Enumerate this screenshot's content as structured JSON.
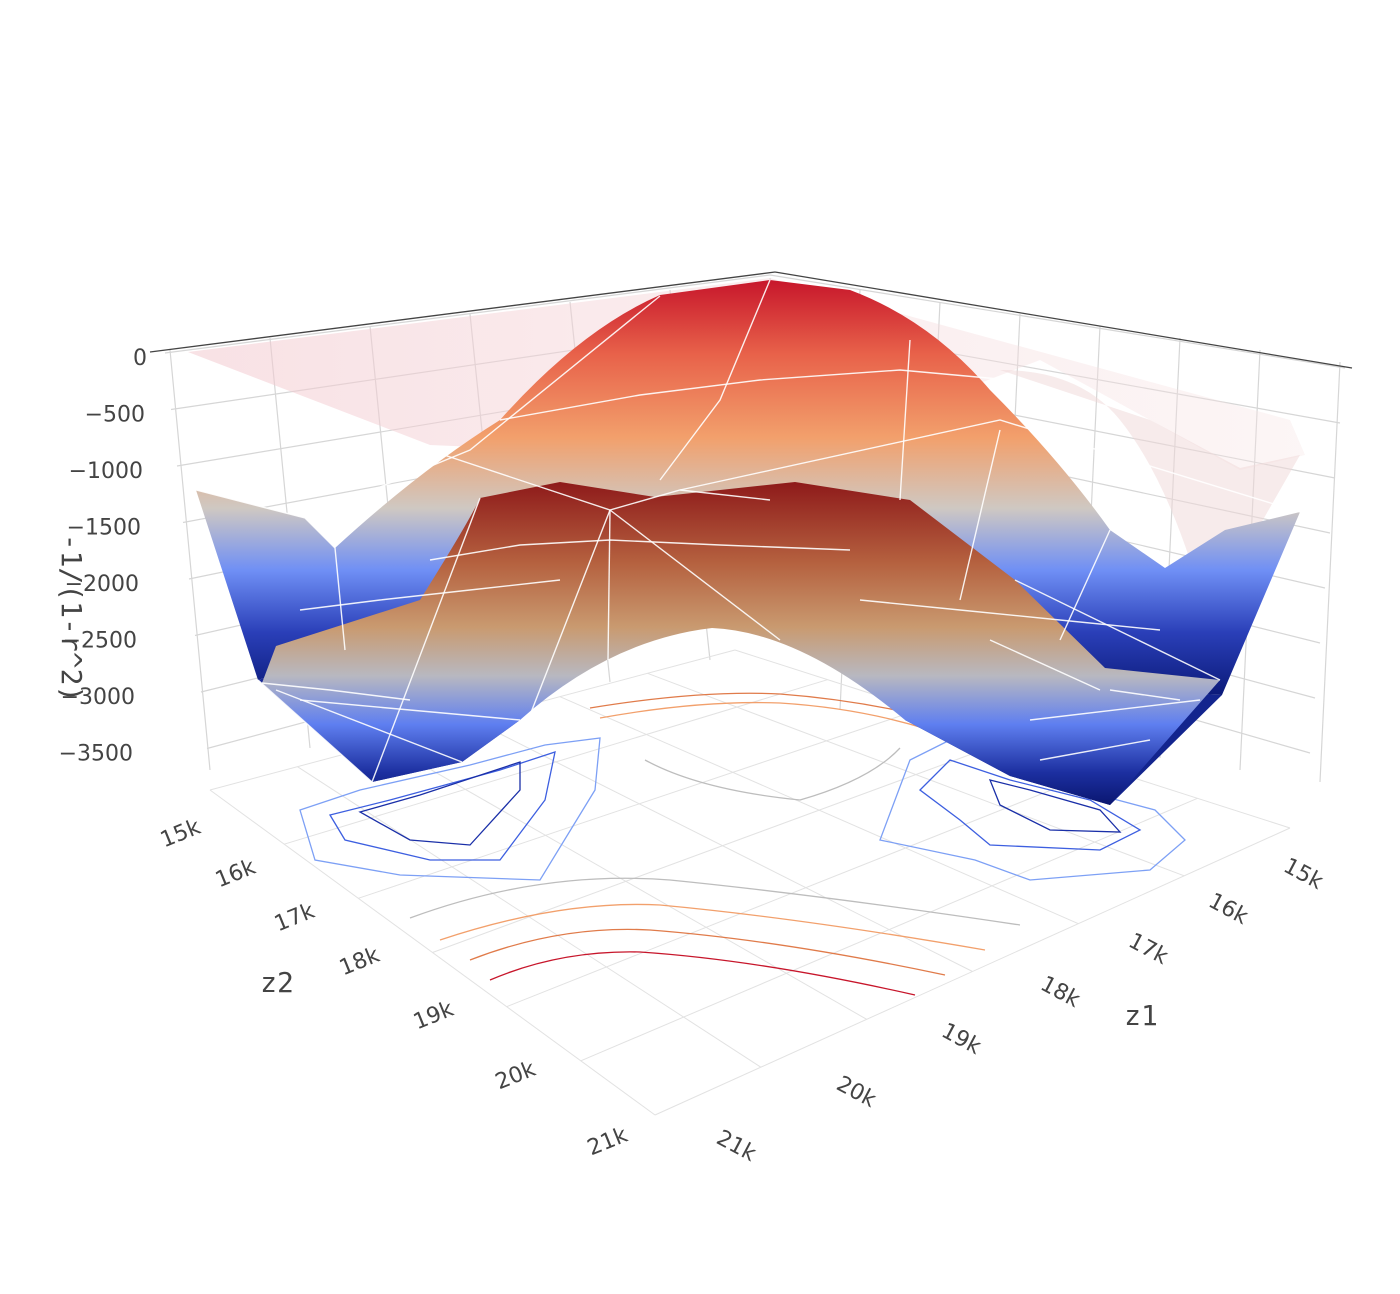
{
  "chart_data": {
    "type": "surface3d",
    "colorscale": {
      "name": "coolwarm",
      "stops": [
        "#0b1f8c",
        "#5a7cf5",
        "#c8c4c0",
        "#f2a06c",
        "#c7162b"
      ]
    },
    "axes": {
      "x": {
        "title": "z1",
        "tick_labels": [
          "15k",
          "16k",
          "17k",
          "18k",
          "19k",
          "20k",
          "21k"
        ],
        "range": [
          15000,
          21000
        ]
      },
      "y": {
        "title": "z2",
        "tick_labels": [
          "15k",
          "16k",
          "17k",
          "18k",
          "19k",
          "20k",
          "21k"
        ],
        "range": [
          15000,
          21000
        ]
      },
      "z": {
        "title": "-1/(1-r^2)",
        "tick_labels": [
          "0",
          "−500",
          "−1000",
          "−1500",
          "−2000",
          "−2500",
          "−3000",
          "−3500"
        ],
        "range": [
          -3800,
          0
        ]
      }
    },
    "surfaces": [
      {
        "role": "upper sheet (semi-transparent)",
        "z_max": -50,
        "z_min": -3700,
        "ridge_along_z1": [
          -2500,
          -1500,
          -600,
          -100,
          -600,
          -1500,
          -2500
        ]
      },
      {
        "role": "lower sheet",
        "z_max": -1300,
        "z_min": -3800,
        "ridge_along_z1": [
          -3600,
          -2900,
          -2000,
          -1400,
          -2000,
          -2900,
          -3600
        ]
      }
    ],
    "contours": {
      "projected_on": "floor",
      "colors": [
        "#c7162b",
        "#e07b4a",
        "#f2a06c",
        "#bdbdbd",
        "#7da0f5",
        "#3d5fe0",
        "#1a2fa8"
      ]
    }
  }
}
